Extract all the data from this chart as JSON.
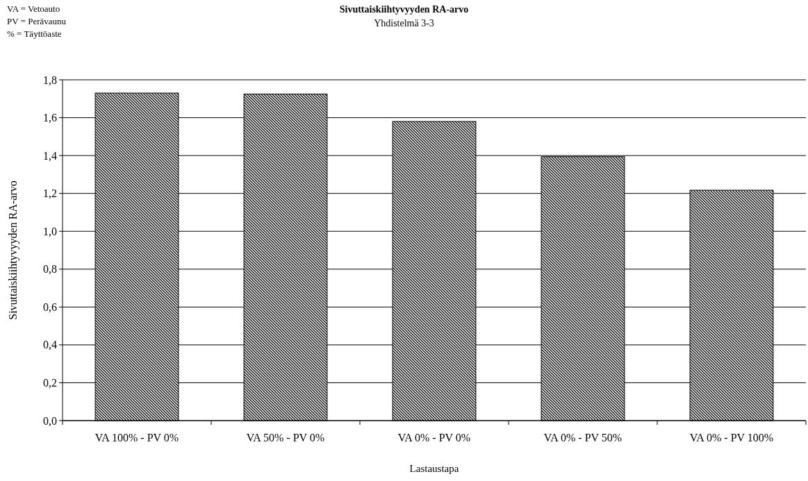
{
  "chart_data": {
    "type": "bar",
    "title": "Sivuttaiskiihtyvyyden RA-arvo",
    "subtitle": "Yhdistelmä 3-3",
    "xlabel": "Lastaustapa",
    "ylabel": "Sivuttaiskiihtyvyyden RA-arvo",
    "annotations": [
      "VA = Vetoauto",
      "PV = Perävaunu",
      "% = Täyttöaste"
    ],
    "categories": [
      "VA 100% - PV 0%",
      "VA 50% - PV 0%",
      "VA 0% - PV 0%",
      "VA 0% - PV 50%",
      "VA 0% - PV 100%"
    ],
    "values": [
      1.73,
      1.725,
      1.58,
      1.394,
      1.217
    ],
    "color": "#000000",
    "ylim": [
      0,
      1.8
    ],
    "yticks": [
      {
        "value": 0,
        "label": "0,0"
      },
      {
        "value": 0.2,
        "label": "0,2"
      },
      {
        "value": 0.4,
        "label": "0,4"
      },
      {
        "value": 0.6,
        "label": "0,6"
      },
      {
        "value": 0.8,
        "label": "0,8"
      },
      {
        "value": 1,
        "label": "1,0"
      },
      {
        "value": 1.2,
        "label": "1,2"
      },
      {
        "value": 1.4,
        "label": "1,4"
      },
      {
        "value": 1.6,
        "label": "1,6"
      },
      {
        "value": 1.8,
        "label": "1,8"
      }
    ],
    "grid": "y"
  }
}
